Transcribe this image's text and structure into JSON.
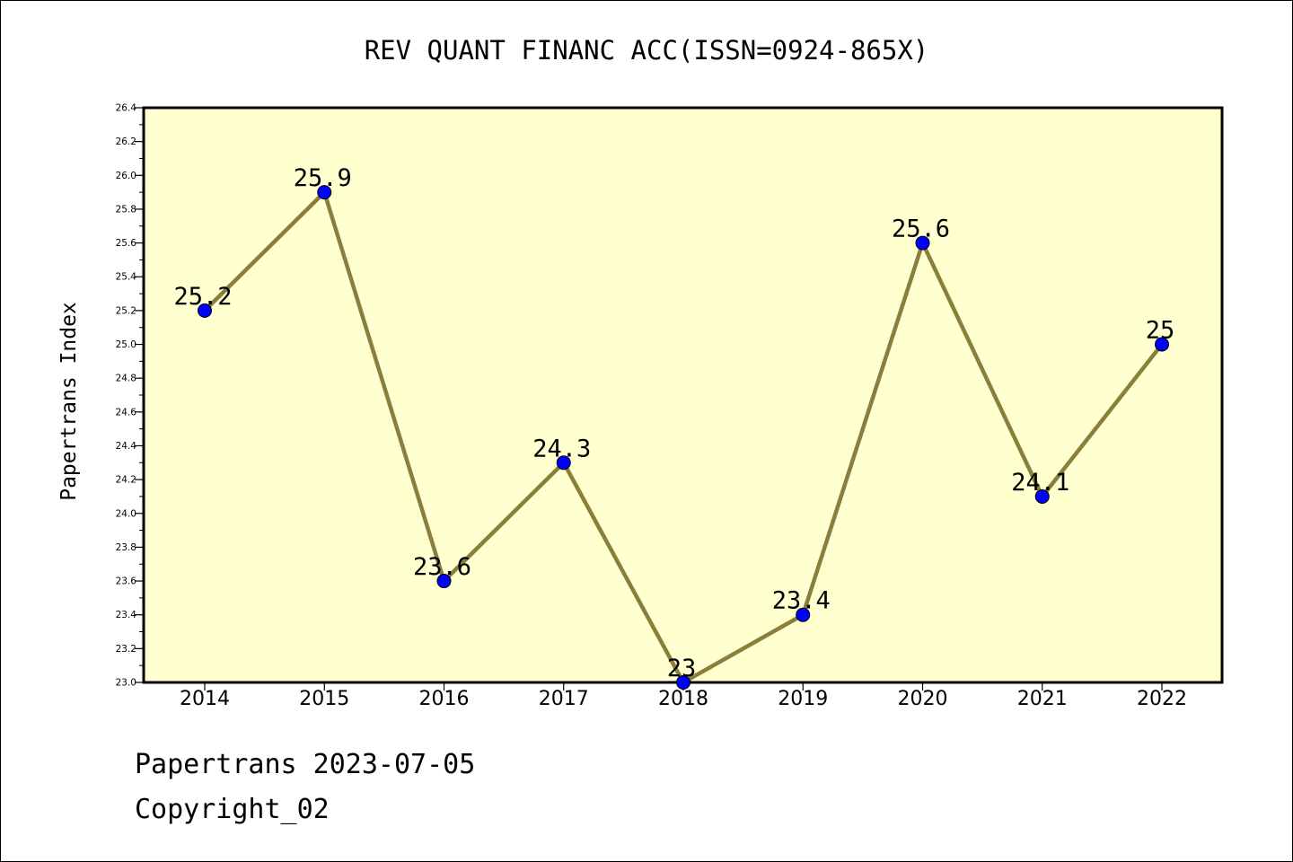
{
  "chart_data": {
    "type": "line",
    "title": "REV QUANT FINANC ACC(ISSN=0924-865X)",
    "ylabel": "Papertrans Index",
    "xlabel": "",
    "categories": [
      "2014",
      "2015",
      "2016",
      "2017",
      "2018",
      "2019",
      "2020",
      "2021",
      "2022"
    ],
    "series": [
      {
        "values": [
          25.2,
          25.9,
          23.6,
          24.3,
          23.0,
          23.4,
          25.6,
          24.1,
          25.0
        ],
        "labels": [
          "25.2",
          "25.9",
          "23.6",
          "24.3",
          "23",
          "23.4",
          "25.6",
          "24.1",
          "25"
        ]
      }
    ],
    "ylim": [
      23.0,
      26.4
    ],
    "ytick_labels": [
      "23.0",
      "23.2",
      "23.4",
      "23.6",
      "23.8",
      "24.0",
      "24.2",
      "24.4",
      "24.6",
      "24.8",
      "25.0",
      "25.2",
      "25.4",
      "25.6",
      "25.8",
      "26.0",
      "26.2",
      "26.4"
    ],
    "grid": false,
    "colors": {
      "plot_background": "#ffffd0",
      "line": "#8b7d3a",
      "marker": "#0000ff"
    }
  },
  "footer": {
    "line1": "Papertrans 2023-07-05",
    "line2": "Copyright_02"
  }
}
